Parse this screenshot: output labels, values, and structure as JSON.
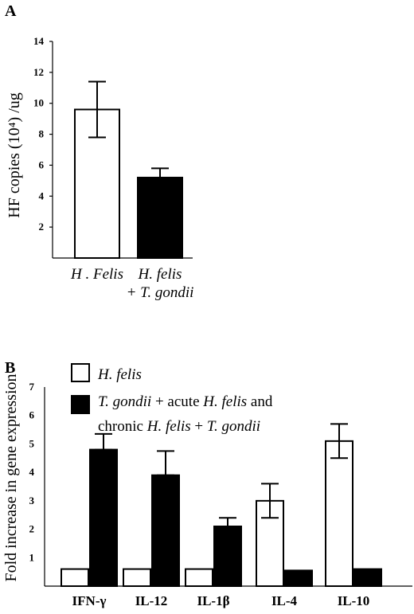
{
  "chart_data": [
    {
      "panel": "A",
      "type": "bar",
      "ylabel": "HF copies (10⁴) /ug",
      "ylim": [
        0,
        14
      ],
      "yticks": [
        2,
        4,
        6,
        8,
        10,
        12,
        14
      ],
      "categories": [
        "H . Felis",
        "H. felis + T. gondii"
      ],
      "category_lines": [
        [
          "H . Felis"
        ],
        [
          "H. felis",
          "+ T. gondii"
        ]
      ],
      "values": [
        9.6,
        5.2
      ],
      "errors": [
        1.8,
        0.6
      ],
      "fills": [
        "open",
        "solid"
      ]
    },
    {
      "panel": "B",
      "type": "bar",
      "ylabel": "Fold increase in gene expression",
      "ylim": [
        0,
        7
      ],
      "yticks": [
        1,
        2,
        3,
        4,
        5,
        6,
        7
      ],
      "categories": [
        "IFN-γ",
        "IL-12",
        "IL-1β",
        "IL-4",
        "IL-10"
      ],
      "series": [
        {
          "name": "H. felis",
          "fill": "open",
          "values": [
            0.6,
            0.6,
            0.6,
            3.0,
            5.1
          ],
          "errors": [
            null,
            null,
            null,
            0.6,
            0.6
          ]
        },
        {
          "name": "T. gondii + acute H. felis and chronic H. felis + T. gondii",
          "fill": "solid",
          "values": [
            4.8,
            3.9,
            2.1,
            0.55,
            0.6
          ],
          "errors": [
            0.55,
            0.85,
            0.3,
            null,
            null
          ]
        }
      ],
      "legend": [
        {
          "fill": "open",
          "lines": [
            [
              {
                "t": "H. felis",
                "i": true
              }
            ]
          ]
        },
        {
          "fill": "solid",
          "lines": [
            [
              {
                "t": "T. gondii",
                "i": true
              },
              {
                "t": " + acute ",
                "i": false
              },
              {
                "t": "H. felis",
                "i": true
              },
              {
                "t": " and",
                "i": false
              }
            ],
            [
              {
                "t": "chronic ",
                "i": false
              },
              {
                "t": "H. felis",
                "i": true
              },
              {
                "t": " + ",
                "i": false
              },
              {
                "t": "T. gondii",
                "i": true
              }
            ]
          ]
        }
      ]
    }
  ]
}
